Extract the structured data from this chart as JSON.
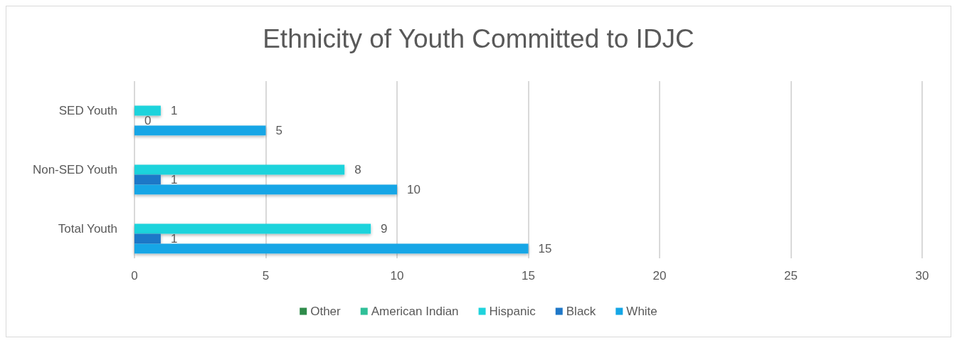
{
  "chart_data": {
    "type": "bar",
    "orientation": "horizontal",
    "title": "Ethnicity of Youth Committed to IDJC",
    "categories": [
      "SED Youth",
      "Non-SED Youth",
      "Total Youth"
    ],
    "series": [
      {
        "name": "Other",
        "color": "#2e8b4a",
        "values": [
          null,
          null,
          null
        ]
      },
      {
        "name": "American Indian",
        "color": "#2fbf98",
        "values": [
          null,
          null,
          null
        ]
      },
      {
        "name": "Hispanic",
        "color": "#1fd3dc",
        "values": [
          1,
          8,
          9
        ]
      },
      {
        "name": "Black",
        "color": "#1f78c8",
        "values": [
          0,
          1,
          1
        ]
      },
      {
        "name": "White",
        "color": "#14a6e6",
        "values": [
          5,
          10,
          15
        ]
      }
    ],
    "xlim": [
      0,
      30
    ],
    "xticks": [
      0,
      5,
      10,
      15,
      20,
      25,
      30
    ],
    "grid": "x",
    "legend": "bottom",
    "data_labels": true
  }
}
